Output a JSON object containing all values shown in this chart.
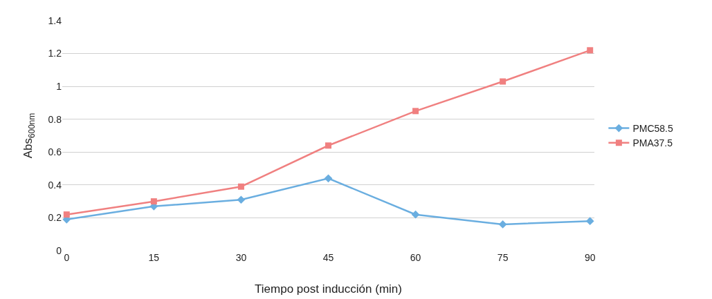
{
  "chart_data": {
    "type": "line",
    "xlabel": "Tiempo post inducción (min)",
    "ylabel": "Abs$_{600nm}$",
    "categories": [
      "0",
      "15",
      "30",
      "45",
      "60",
      "75",
      "90"
    ],
    "series": [
      {
        "name": "PMC58.5",
        "color": "#6aaee0",
        "marker": "diamond",
        "values": [
          0.19,
          0.27,
          0.31,
          0.44,
          0.22,
          0.16,
          0.18
        ]
      },
      {
        "name": "PMA37.5",
        "color": "#f08080",
        "marker": "square",
        "values": [
          0.22,
          0.3,
          0.39,
          0.64,
          0.85,
          1.03,
          1.22
        ]
      }
    ],
    "ylim": [
      0,
      1.4
    ],
    "yticks": [
      0,
      0.2,
      0.4,
      0.6,
      0.8,
      1,
      1.2,
      1.4
    ],
    "grid": "y",
    "legend": "right",
    "line_style": "solid"
  }
}
